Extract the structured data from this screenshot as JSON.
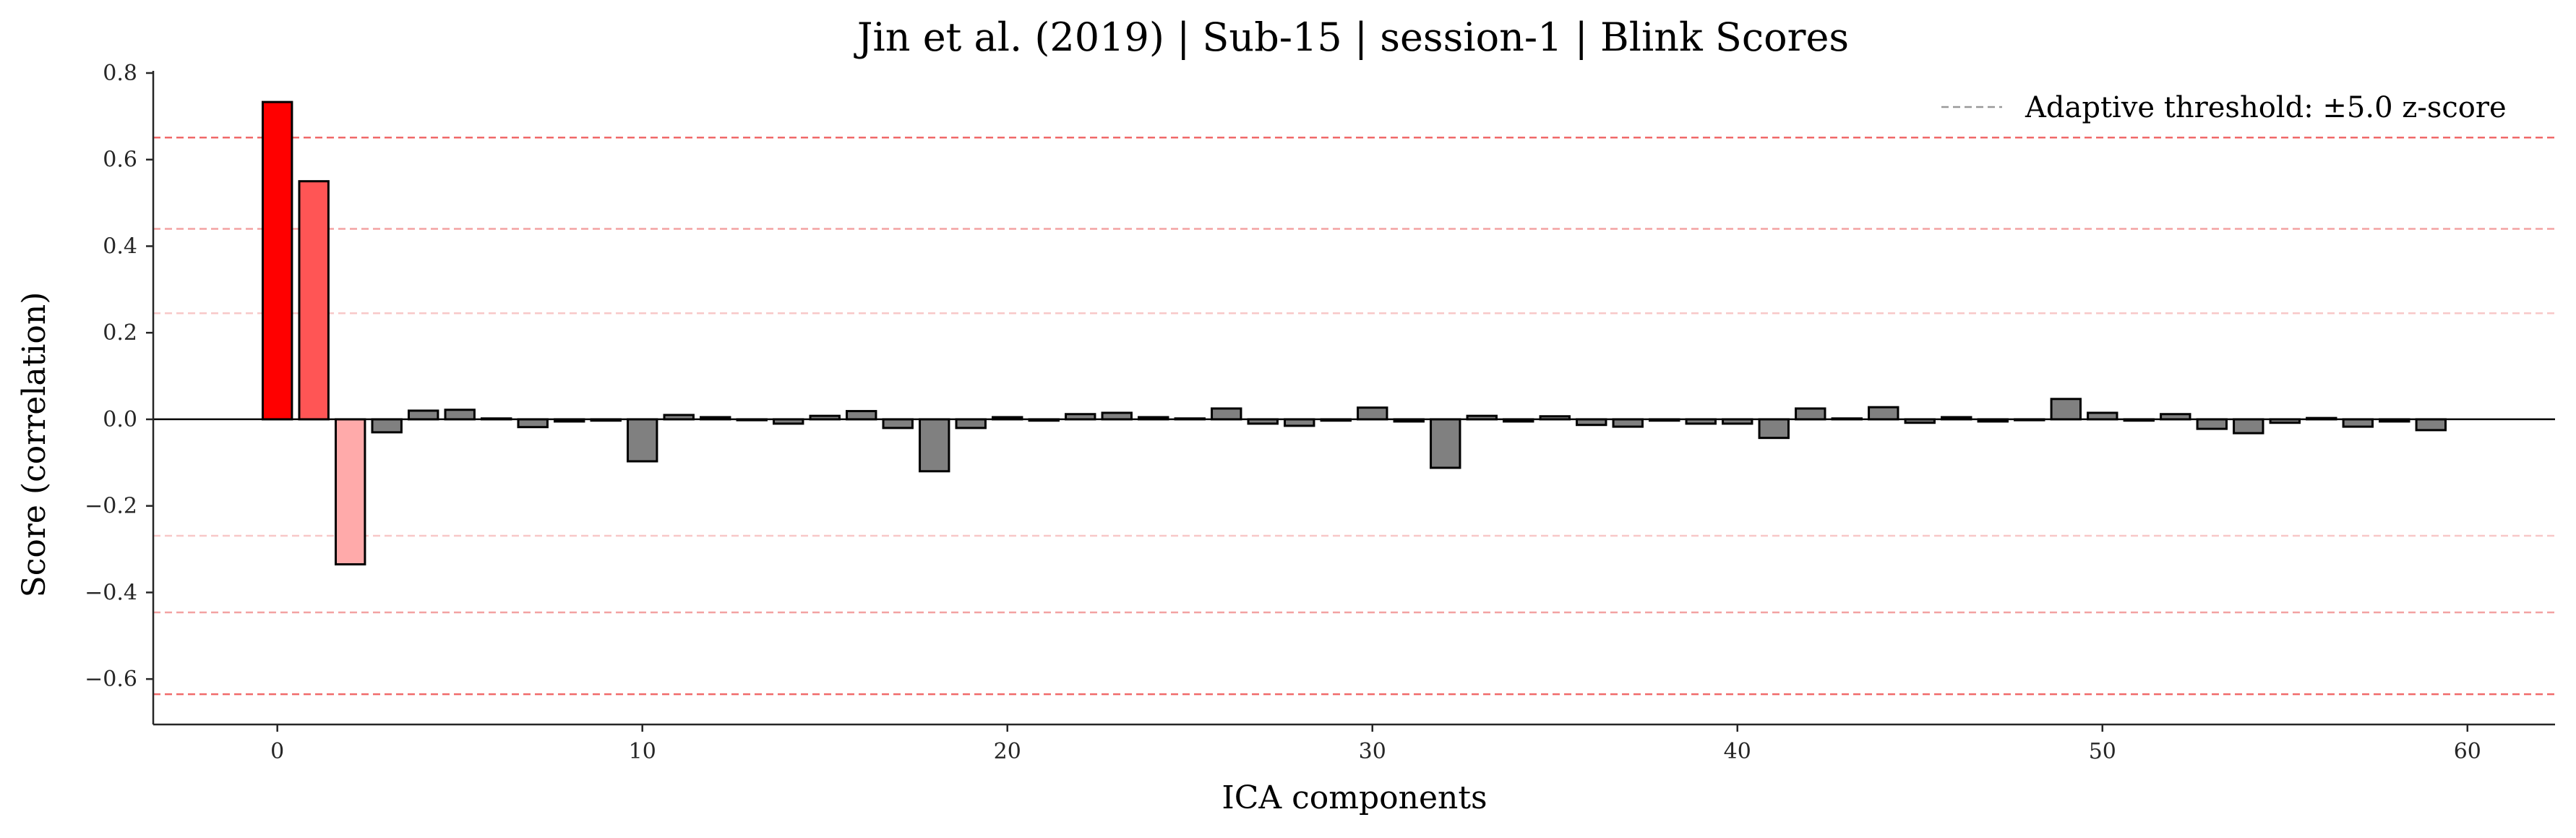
{
  "chart_data": {
    "type": "bar",
    "title": "Jin et al. (2019) | Sub-15 | session-1 | Blink Scores",
    "xlabel": "ICA components",
    "ylabel": "Score (correlation)",
    "xlim": [
      -3.4,
      62.4
    ],
    "ylim": [
      -0.705,
      0.805
    ],
    "xticks": [
      0,
      10,
      20,
      30,
      40,
      50,
      60
    ],
    "yticks": [
      -0.6,
      -0.4,
      -0.2,
      0.0,
      0.2,
      0.4,
      0.6,
      0.8
    ],
    "ytick_labels": [
      "−0.6",
      "−0.4",
      "−0.2",
      "0.0",
      "0.2",
      "0.4",
      "0.6",
      "0.8"
    ],
    "grid": false,
    "legend_position": "top-right",
    "legend": {
      "label": "Adaptive threshold: ±5.0 z-score"
    },
    "thresholds": [
      {
        "value": 0.651,
        "color": "#ee5a5a",
        "opacity": 0.9
      },
      {
        "value": 0.44,
        "color": "#ee7a7a",
        "opacity": 0.7
      },
      {
        "value": 0.245,
        "color": "#f3a3a3",
        "opacity": 0.6
      },
      {
        "value": -0.269,
        "color": "#f3a3a3",
        "opacity": 0.6
      },
      {
        "value": -0.446,
        "color": "#ee7a7a",
        "opacity": 0.7
      },
      {
        "value": -0.635,
        "color": "#ee5a5a",
        "opacity": 0.9
      }
    ],
    "x": [
      0,
      1,
      2,
      3,
      4,
      5,
      6,
      7,
      8,
      9,
      10,
      11,
      12,
      13,
      14,
      15,
      16,
      17,
      18,
      19,
      20,
      21,
      22,
      23,
      24,
      25,
      26,
      27,
      28,
      29,
      30,
      31,
      32,
      33,
      34,
      35,
      36,
      37,
      38,
      39,
      40,
      41,
      42,
      43,
      44,
      45,
      46,
      47,
      48,
      49,
      50,
      51,
      52,
      53,
      54,
      55,
      56,
      57,
      58,
      59
    ],
    "values": [
      0.733,
      0.55,
      -0.335,
      -0.03,
      0.02,
      0.022,
      0.002,
      -0.018,
      -0.005,
      -0.003,
      -0.097,
      0.01,
      0.005,
      -0.002,
      -0.01,
      0.008,
      0.019,
      -0.02,
      -0.12,
      -0.02,
      0.005,
      -0.003,
      0.012,
      0.015,
      0.005,
      0.002,
      0.025,
      -0.01,
      -0.015,
      -0.003,
      0.027,
      -0.005,
      -0.112,
      0.008,
      -0.005,
      0.007,
      -0.013,
      -0.017,
      -0.003,
      -0.01,
      -0.01,
      -0.043,
      0.025,
      0.002,
      0.028,
      -0.008,
      0.005,
      -0.005,
      -0.002,
      0.047,
      0.015,
      -0.003,
      0.012,
      -0.022,
      -0.032,
      -0.008,
      0.003,
      -0.017,
      -0.005,
      -0.025
    ],
    "colors": [
      "#ff0000",
      "#ff5555",
      "#ffaaaa",
      "#808080"
    ],
    "highlighted_count": 3,
    "bar_edge_color": "#000000"
  }
}
